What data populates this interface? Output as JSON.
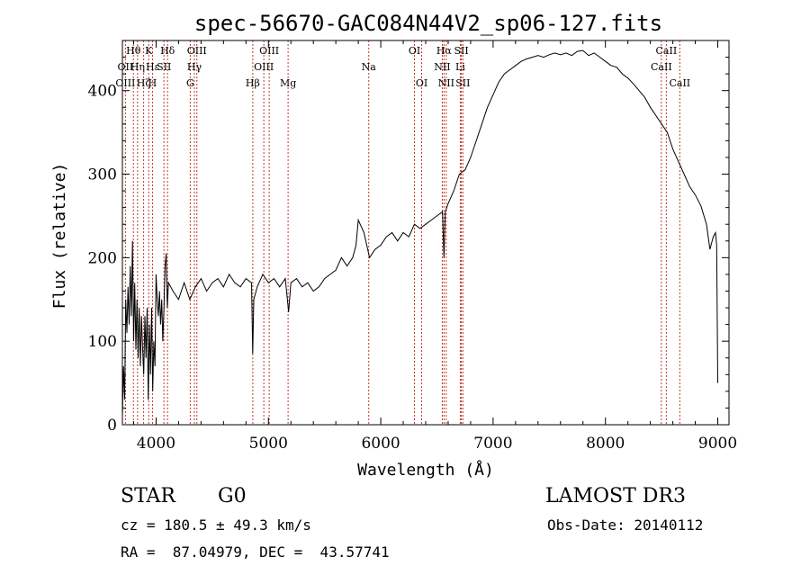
{
  "chart_data": {
    "type": "line",
    "title": "spec-56670-GAC084N44V2_sp06-127.fits",
    "xlabel": "Wavelength (Å)",
    "ylabel": "Flux (relative)",
    "xlim": [
      3700,
      9100
    ],
    "ylim": [
      0,
      460
    ],
    "xticks": [
      4000,
      5000,
      6000,
      7000,
      8000,
      9000
    ],
    "yticks": [
      0,
      100,
      200,
      300,
      400
    ],
    "series": [
      {
        "name": "flux",
        "points": [
          [
            3700,
            10
          ],
          [
            3710,
            70
          ],
          [
            3720,
            30
          ],
          [
            3730,
            150
          ],
          [
            3740,
            110
          ],
          [
            3750,
            165
          ],
          [
            3760,
            120
          ],
          [
            3770,
            190
          ],
          [
            3780,
            130
          ],
          [
            3790,
            220
          ],
          [
            3800,
            100
          ],
          [
            3810,
            170
          ],
          [
            3820,
            90
          ],
          [
            3830,
            150
          ],
          [
            3840,
            80
          ],
          [
            3850,
            140
          ],
          [
            3860,
            70
          ],
          [
            3870,
            130
          ],
          [
            3880,
            90
          ],
          [
            3890,
            60
          ],
          [
            3900,
            130
          ],
          [
            3910,
            80
          ],
          [
            3920,
            140
          ],
          [
            3930,
            30
          ],
          [
            3940,
            120
          ],
          [
            3950,
            60
          ],
          [
            3960,
            140
          ],
          [
            3970,
            40
          ],
          [
            3980,
            100
          ],
          [
            3990,
            70
          ],
          [
            4000,
            180
          ],
          [
            4010,
            150
          ],
          [
            4020,
            130
          ],
          [
            4030,
            160
          ],
          [
            4040,
            120
          ],
          [
            4050,
            150
          ],
          [
            4060,
            100
          ],
          [
            4070,
            140
          ],
          [
            4080,
            190
          ],
          [
            4090,
            205
          ],
          [
            4100,
            140
          ],
          [
            4110,
            170
          ],
          [
            4150,
            160
          ],
          [
            4200,
            150
          ],
          [
            4250,
            170
          ],
          [
            4300,
            150
          ],
          [
            4350,
            165
          ],
          [
            4400,
            175
          ],
          [
            4450,
            160
          ],
          [
            4500,
            170
          ],
          [
            4550,
            175
          ],
          [
            4600,
            165
          ],
          [
            4650,
            180
          ],
          [
            4700,
            170
          ],
          [
            4750,
            165
          ],
          [
            4800,
            175
          ],
          [
            4850,
            170
          ],
          [
            4860,
            85
          ],
          [
            4870,
            150
          ],
          [
            4900,
            165
          ],
          [
            4950,
            180
          ],
          [
            5000,
            170
          ],
          [
            5050,
            175
          ],
          [
            5100,
            165
          ],
          [
            5150,
            175
          ],
          [
            5180,
            135
          ],
          [
            5200,
            170
          ],
          [
            5250,
            175
          ],
          [
            5300,
            165
          ],
          [
            5350,
            170
          ],
          [
            5400,
            160
          ],
          [
            5450,
            165
          ],
          [
            5500,
            175
          ],
          [
            5550,
            180
          ],
          [
            5600,
            185
          ],
          [
            5650,
            200
          ],
          [
            5700,
            190
          ],
          [
            5750,
            200
          ],
          [
            5780,
            215
          ],
          [
            5800,
            245
          ],
          [
            5850,
            230
          ],
          [
            5900,
            200
          ],
          [
            5950,
            210
          ],
          [
            6000,
            215
          ],
          [
            6050,
            225
          ],
          [
            6100,
            230
          ],
          [
            6150,
            220
          ],
          [
            6200,
            230
          ],
          [
            6250,
            225
          ],
          [
            6300,
            240
          ],
          [
            6350,
            235
          ],
          [
            6400,
            240
          ],
          [
            6450,
            245
          ],
          [
            6500,
            250
          ],
          [
            6550,
            255
          ],
          [
            6563,
            200
          ],
          [
            6575,
            255
          ],
          [
            6600,
            265
          ],
          [
            6650,
            280
          ],
          [
            6700,
            300
          ],
          [
            6750,
            305
          ],
          [
            6800,
            320
          ],
          [
            6850,
            340
          ],
          [
            6900,
            360
          ],
          [
            6950,
            380
          ],
          [
            7000,
            395
          ],
          [
            7050,
            410
          ],
          [
            7100,
            420
          ],
          [
            7150,
            425
          ],
          [
            7200,
            430
          ],
          [
            7250,
            435
          ],
          [
            7300,
            438
          ],
          [
            7350,
            440
          ],
          [
            7400,
            442
          ],
          [
            7450,
            440
          ],
          [
            7500,
            443
          ],
          [
            7550,
            445
          ],
          [
            7600,
            443
          ],
          [
            7650,
            445
          ],
          [
            7700,
            442
          ],
          [
            7750,
            447
          ],
          [
            7800,
            448
          ],
          [
            7850,
            442
          ],
          [
            7900,
            445
          ],
          [
            7950,
            440
          ],
          [
            8000,
            435
          ],
          [
            8050,
            430
          ],
          [
            8100,
            428
          ],
          [
            8150,
            420
          ],
          [
            8200,
            415
          ],
          [
            8250,
            408
          ],
          [
            8300,
            400
          ],
          [
            8350,
            392
          ],
          [
            8400,
            380
          ],
          [
            8450,
            370
          ],
          [
            8500,
            360
          ],
          [
            8550,
            350
          ],
          [
            8600,
            330
          ],
          [
            8650,
            315
          ],
          [
            8700,
            300
          ],
          [
            8750,
            285
          ],
          [
            8800,
            275
          ],
          [
            8850,
            262
          ],
          [
            8900,
            240
          ],
          [
            8930,
            210
          ],
          [
            8960,
            225
          ],
          [
            8980,
            230
          ],
          [
            8990,
            215
          ],
          [
            9000,
            50
          ]
        ]
      }
    ],
    "annotations": [
      {
        "label": "OII",
        "x": 3727,
        "row": 1
      },
      {
        "label": "OIII",
        "x": 3727,
        "row": 2
      },
      {
        "label": "Hθ",
        "x": 3798,
        "row": 0
      },
      {
        "label": "Hη",
        "x": 3835,
        "row": 1
      },
      {
        "label": "Hζ",
        "x": 3889,
        "row": 2
      },
      {
        "label": "K",
        "x": 3934,
        "row": 0
      },
      {
        "label": "Hε",
        "x": 3970,
        "row": 1
      },
      {
        "label": "H",
        "x": 3968,
        "row": 2
      },
      {
        "label": "SII",
        "x": 4070,
        "row": 1
      },
      {
        "label": "Hδ",
        "x": 4102,
        "row": 0
      },
      {
        "label": "OIII",
        "x": 4363,
        "row": 0
      },
      {
        "label": "Hγ",
        "x": 4341,
        "row": 1
      },
      {
        "label": "G",
        "x": 4304,
        "row": 2
      },
      {
        "label": "Hβ",
        "x": 4861,
        "row": 2
      },
      {
        "label": "OIII",
        "x": 5007,
        "row": 0
      },
      {
        "label": "OIII",
        "x": 4959,
        "row": 1
      },
      {
        "label": "Mg",
        "x": 5175,
        "row": 2
      },
      {
        "label": "Na",
        "x": 5893,
        "row": 1
      },
      {
        "label": "OI",
        "x": 6300,
        "row": 0
      },
      {
        "label": "OI",
        "x": 6364,
        "row": 2
      },
      {
        "label": "Hα",
        "x": 6563,
        "row": 0
      },
      {
        "label": "NII",
        "x": 6548,
        "row": 1
      },
      {
        "label": "NII",
        "x": 6583,
        "row": 2
      },
      {
        "label": "SII",
        "x": 6717,
        "row": 0
      },
      {
        "label": "Li",
        "x": 6708,
        "row": 1
      },
      {
        "label": "SII",
        "x": 6731,
        "row": 2
      },
      {
        "label": "CaII",
        "x": 8542,
        "row": 0
      },
      {
        "label": "CaII",
        "x": 8498,
        "row": 1
      },
      {
        "label": "CaII",
        "x": 8662,
        "row": 2
      }
    ],
    "line_markers": [
      3727,
      3798,
      3835,
      3889,
      3934,
      3968,
      4070,
      4102,
      4304,
      4341,
      4363,
      4861,
      4959,
      5007,
      5175,
      5893,
      6300,
      6364,
      6548,
      6563,
      6583,
      6708,
      6717,
      6731,
      8498,
      8542,
      8662
    ]
  },
  "info": {
    "object_class": "STAR",
    "subclass": "G0",
    "survey": "LAMOST DR3",
    "redshift": "cz = 180.5 ± 49.3 km/s",
    "obs_date": "Obs-Date: 20140112",
    "coords": "RA =  87.04979, DEC =  43.57741"
  },
  "colors": {
    "marker": "#c0392b",
    "spectrum": "#000000"
  }
}
